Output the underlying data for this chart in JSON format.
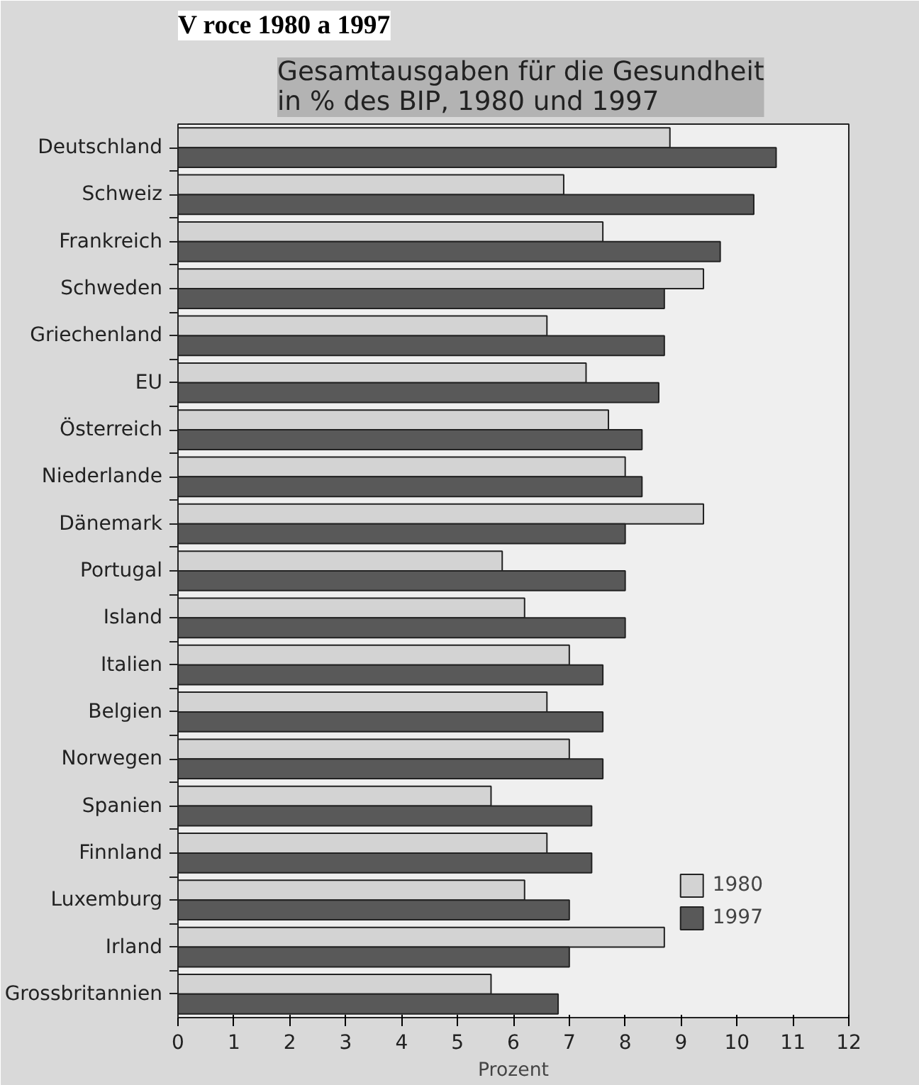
{
  "chart_data": {
    "type": "bar",
    "orientation": "horizontal",
    "title": "Gesamtausgaben für die Gesundheit\nin % des BIP, 1980 und 1997",
    "annotations": [
      "V roce 1980 a 1997"
    ],
    "xlabel": "Prozent",
    "categories": [
      "Deutschland",
      "Schweiz",
      "Frankreich",
      "Schweden",
      "Griechenland",
      "EU",
      "Österreich",
      "Niederlande",
      "Dänemark",
      "Portugal",
      "Island",
      "Italien",
      "Belgien",
      "Norwegen",
      "Spanien",
      "Finnland",
      "Luxemburg",
      "Irland",
      "Grossbritannien"
    ],
    "series": [
      {
        "name": "1980",
        "color": "#d3d3d3",
        "values": [
          8.8,
          6.9,
          7.6,
          9.4,
          6.6,
          7.3,
          7.7,
          8.0,
          9.4,
          5.8,
          6.2,
          7.0,
          6.6,
          7.0,
          5.6,
          6.6,
          6.2,
          8.7,
          5.6
        ]
      },
      {
        "name": "1997",
        "color": "#595959",
        "values": [
          10.7,
          10.3,
          9.7,
          8.7,
          8.7,
          8.6,
          8.3,
          8.3,
          8.0,
          8.0,
          8.0,
          7.6,
          7.6,
          7.6,
          7.4,
          7.4,
          7.0,
          7.0,
          6.8
        ]
      }
    ],
    "xlim": [
      0,
      12
    ],
    "xticks": [
      0,
      1,
      2,
      3,
      4,
      5,
      6,
      7,
      8,
      9,
      10,
      11,
      12
    ],
    "grid": false,
    "legend": "bottom right"
  }
}
